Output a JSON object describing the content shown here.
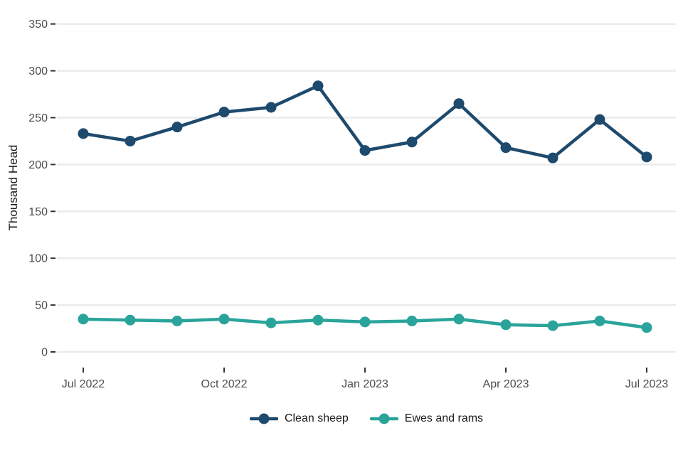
{
  "chart_data": {
    "type": "line",
    "title": "",
    "xlabel": "",
    "ylabel": "Thousand Head",
    "ylim": [
      0,
      350
    ],
    "y_ticks": [
      0,
      50,
      100,
      150,
      200,
      250,
      300,
      350
    ],
    "x_ticks": [
      {
        "label": "Jul 2022",
        "month_index": 0
      },
      {
        "label": "Oct 2022",
        "month_index": 3
      },
      {
        "label": "Jan 2023",
        "month_index": 6
      },
      {
        "label": "Apr 2023",
        "month_index": 9
      },
      {
        "label": "Jul 2023",
        "month_index": 12
      }
    ],
    "categories": [
      "Jul 2022",
      "Aug 2022",
      "Sep 2022",
      "Oct 2022",
      "Nov 2022",
      "Dec 2022",
      "Jan 2023",
      "Feb 2023",
      "Mar 2023",
      "Apr 2023",
      "May 2023",
      "Jun 2023",
      "Jul 2023"
    ],
    "series": [
      {
        "name": "Clean sheep",
        "color": "#1e4a6d",
        "values": [
          233,
          225,
          240,
          256,
          261,
          284,
          215,
          224,
          265,
          218,
          207,
          248,
          208
        ]
      },
      {
        "name": "Ewes and rams",
        "color": "#2aa49b",
        "values": [
          35,
          34,
          33,
          35,
          31,
          34,
          32,
          33,
          35,
          29,
          28,
          33,
          26
        ]
      }
    ],
    "grid": true,
    "legend_position": "bottom"
  },
  "colors": {
    "background": "#ffffff",
    "gridline": "#ebebeb",
    "tick_mark": "#333333",
    "tick_text": "#4d4d4d",
    "axis_title_text": "#1a1a1a",
    "legend_text": "#1a1a1a"
  }
}
